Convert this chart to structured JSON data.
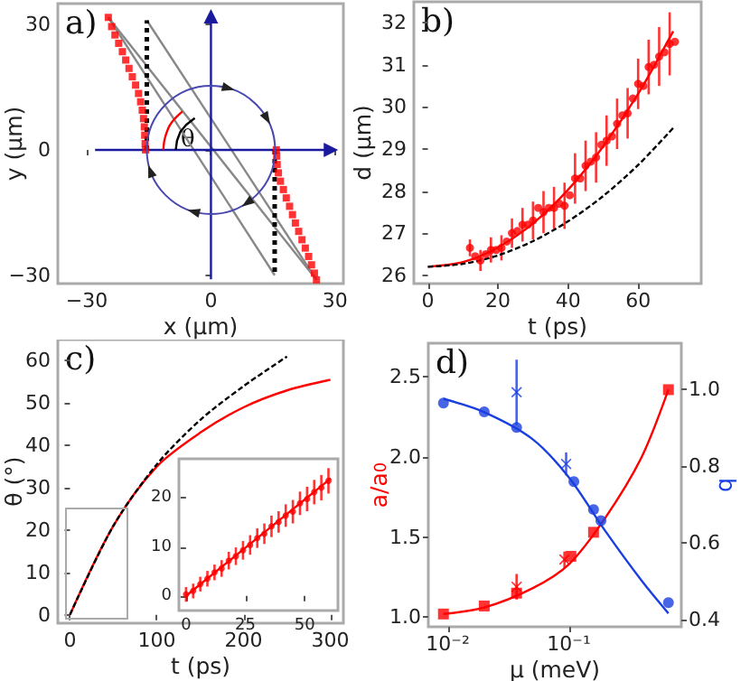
{
  "chart_data": [
    {
      "type": "line",
      "title": "a)",
      "xlabel": "x (μm)",
      "ylabel": "y (μm)",
      "xlim": [
        -37,
        32
      ],
      "ylim": [
        -32,
        35
      ],
      "xticks": [
        {
          "value": -30,
          "label": "−30"
        },
        0,
        30
      ],
      "yticks": [
        {
          "value": -30,
          "label": "−30"
        },
        0,
        30
      ],
      "grid": false,
      "annotations": [
        {
          "text": "θ",
          "x": -5.6,
          "y": 2.3
        }
      ],
      "series": [
        {
          "color": "#888888",
          "x": [
            -24.8,
            25.5
          ],
          "values": [
            31.7,
            -31.1
          ],
          "marker": "none"
        },
        {
          "color": "#888888",
          "x": [
            -24.8,
            15.4
          ],
          "values": [
            31.7,
            -30
          ],
          "marker": "none"
        },
        {
          "color": "#888888",
          "x": [
            -15.5,
            25.5
          ],
          "values": [
            31,
            -31.1
          ],
          "marker": "none"
        },
        {
          "color": "#1a1a9e",
          "x": [
            -28,
            29
          ],
          "values": [
            0,
            0
          ],
          "marker": "triangle"
        },
        {
          "color": "#1a1a9e",
          "x": [
            0,
            0
          ],
          "values": [
            -31,
            32
          ],
          "marker": "triangle"
        },
        {
          "color": "#ff0000",
          "x": [
            -11.5,
            -11.3,
            -10.8,
            -10,
            -8.8,
            -6.9
          ],
          "values": [
            0,
            2,
            3.9,
            5.8,
            7.4,
            9.2
          ],
          "marker": "none"
        },
        {
          "color": "#000000",
          "x": [
            -8.5,
            -8.2,
            -7.4,
            -6,
            -3.9
          ],
          "values": [
            0,
            2.2,
            4.3,
            6,
            7.6
          ],
          "marker": "none"
        },
        {
          "color": "#000000",
          "x": [
            -15.5,
            -15.5
          ],
          "values": [
            0,
            31
          ],
          "marker": "none",
          "line_style": "dotted"
        },
        {
          "color": "#000000",
          "x": [
            15.4,
            15.4
          ],
          "values": [
            0,
            -30
          ],
          "marker": "none",
          "line_style": "dotted"
        },
        {
          "type": "scatter",
          "color": "#ff0000",
          "marker": "square",
          "x": [
            -24.8,
            -24,
            -23.2,
            -22.3,
            -21.4,
            -20.6,
            -19.8,
            -19,
            -18.2,
            -17.5,
            -17,
            -16.6,
            -16.3,
            -16.1,
            -16,
            -15.9,
            -15.8,
            15.8,
            15.9,
            16,
            16.3,
            16.8,
            17.5,
            18.2,
            19,
            19.7,
            20.4,
            21.2,
            22,
            22.8,
            23.6,
            24.3,
            25,
            25.5
          ],
          "values": [
            31.7,
            29.5,
            27.5,
            25.5,
            23.5,
            21.5,
            19.5,
            17.5,
            15.5,
            13.5,
            11.5,
            9.5,
            7.5,
            5.5,
            3.5,
            1.5,
            0,
            0,
            -1.5,
            -3.5,
            -5.5,
            -7.5,
            -9.5,
            -11.5,
            -13.5,
            -15.5,
            -17.5,
            -19.5,
            -21.5,
            -23.5,
            -25.5,
            -27.5,
            -29.5,
            -31.1
          ]
        }
      ]
    },
    {
      "type": "line",
      "title": "b)",
      "xlabel": "t (ps)",
      "ylabel": "d (μm)",
      "xlim": [
        -4,
        78
      ],
      "ylim": [
        25.8,
        32.5
      ],
      "xticks": [
        0,
        20,
        40,
        60
      ],
      "yticks": [
        26,
        27,
        28,
        29,
        30,
        31,
        32
      ],
      "grid": false,
      "series": [
        {
          "color": "#000000",
          "x": [
            0,
            10,
            20,
            30,
            40,
            50,
            60,
            70
          ],
          "values": [
            26.2,
            26.27,
            26.47,
            26.81,
            27.28,
            27.88,
            28.62,
            29.5
          ],
          "marker": "none",
          "line_style": "dashed"
        },
        {
          "color": "#ff0000",
          "x": [
            0,
            10,
            20,
            30,
            40,
            50,
            60,
            70
          ],
          "values": [
            26.2,
            26.31,
            26.66,
            27.23,
            28.03,
            29.06,
            30.31,
            31.8
          ],
          "marker": "none"
        },
        {
          "type": "scatter",
          "color": "#ff0000",
          "marker": "circle",
          "x": [
            12,
            13.5,
            15,
            16.5,
            18,
            19.5,
            21,
            22.5,
            24,
            25.5,
            27,
            28.5,
            30,
            31.5,
            33,
            34.5,
            36,
            37.5,
            39,
            40.5,
            42,
            43.5,
            45,
            46.5,
            48,
            49.5,
            51,
            52.5,
            54,
            55.5,
            57,
            58.5,
            60,
            61.5,
            63,
            64.5,
            66,
            67.5,
            69,
            70.5
          ],
          "values": [
            26.65,
            26.45,
            26.35,
            26.5,
            26.6,
            26.6,
            26.65,
            26.8,
            27.0,
            27.05,
            27.2,
            27.2,
            27.3,
            27.6,
            27.5,
            27.6,
            27.6,
            27.7,
            27.65,
            27.9,
            28.3,
            28.3,
            28.6,
            28.7,
            28.8,
            29.1,
            29.2,
            29.3,
            29.6,
            29.8,
            29.85,
            30.2,
            30.55,
            30.5,
            30.95,
            31.0,
            31.2,
            31.3,
            31.5,
            31.55
          ],
          "errors": [
            0.2,
            null,
            0.25,
            null,
            0.3,
            null,
            0.3,
            null,
            0.35,
            null,
            0.4,
            null,
            0.45,
            null,
            0.5,
            null,
            0.5,
            null,
            0.55,
            null,
            0.6,
            null,
            0.6,
            null,
            0.6,
            null,
            0.6,
            null,
            0.6,
            null,
            0.6,
            null,
            0.6,
            null,
            0.65,
            null,
            0.7,
            null,
            0.75,
            null
          ]
        }
      ]
    },
    {
      "type": "line",
      "title": "c)",
      "xlabel": "t (ps)",
      "ylabel": "θ (°)",
      "xlim": [
        -14,
        315
      ],
      "ylim": [
        -2,
        65
      ],
      "xticks": [
        0,
        100,
        200,
        300
      ],
      "yticks": [
        0,
        10,
        20,
        30,
        40,
        50,
        60
      ],
      "grid": false,
      "series": [
        {
          "color": "#000000",
          "x": [
            0,
            50,
            100,
            150,
            200,
            250
          ],
          "values": [
            0,
            21,
            35.5,
            46,
            54,
            61
          ],
          "marker": "none",
          "line_style": "dashed"
        },
        {
          "color": "#ff0000",
          "x": [
            0,
            50,
            100,
            150,
            200,
            250,
            300
          ],
          "values": [
            0,
            21,
            35,
            43,
            49,
            53,
            55.5
          ],
          "marker": "none"
        }
      ]
    },
    {
      "type": "line",
      "xlim": [
        -3,
        64
      ],
      "ylim": [
        -3,
        28
      ],
      "xticks": [
        0,
        25,
        50
      ],
      "yticks": [
        0,
        10,
        20
      ],
      "grid": false,
      "series": [
        {
          "color": "#ff0000",
          "x": [
            0,
            61
          ],
          "values": [
            0,
            24
          ],
          "marker": "none"
        },
        {
          "type": "scatter",
          "color": "#ff0000",
          "marker": "circle",
          "x": [
            0,
            3,
            6,
            9,
            12,
            15,
            18,
            21,
            24,
            27,
            30,
            33,
            36,
            39,
            42,
            45,
            48,
            51,
            54,
            57,
            60
          ],
          "values": [
            0.3,
            1,
            2.4,
            3.5,
            4.8,
            5.6,
            7.2,
            8.1,
            9.3,
            10.4,
            11.8,
            12.7,
            14.2,
            15.1,
            16.4,
            17.2,
            18.9,
            19.8,
            21.2,
            22.1,
            23.5
          ],
          "errors": [
            1.5,
            1.5,
            1.5,
            1.6,
            1.6,
            1.7,
            1.8,
            1.8,
            1.9,
            2,
            2,
            2.1,
            2.2,
            2.2,
            2.3,
            2.4,
            2.4,
            2.5,
            2.5,
            2.6,
            2.6
          ]
        }
      ]
    },
    {
      "type": "line",
      "title": "d)",
      "xlabel": "μ (meV)",
      "ylabel": "a/a$_{0}$",
      "y2label": "b",
      "log": "x",
      "xlim": [
        0.0069,
        0.85
      ],
      "ylim": [
        0.94,
        2.71
      ],
      "y2lim": [
        0.38,
        1.12
      ],
      "xticks": [
        {
          "value": 0.01,
          "label": "10⁻²"
        },
        {
          "value": 0.1,
          "label": "10⁻¹"
        }
      ],
      "yticks": [
        {
          "value": 1,
          "label": "1.0"
        },
        1.5,
        {
          "value": 2,
          "label": "2.0"
        },
        2.5
      ],
      "y2ticks": [
        0.4,
        0.6,
        0.8,
        {
          "value": 1,
          "label": "1.0"
        }
      ],
      "grid": false,
      "series": [
        {
          "color": "#ff0000",
          "x": [
            0.0092,
            0.02,
            0.05,
            0.1,
            0.2,
            0.4,
            0.665
          ],
          "values": [
            1.02,
            1.06,
            1.18,
            1.33,
            1.62,
            2.0,
            2.42
          ],
          "marker": "none"
        },
        {
          "type": "scatter",
          "color": "#ff0000",
          "marker": "square",
          "x": [
            0.0092,
            0.02,
            0.037,
            0.104,
            0.16,
            0.665
          ],
          "values": [
            1.02,
            1.07,
            1.15,
            1.38,
            1.53,
            2.42
          ]
        },
        {
          "type": "scatter",
          "color": "#ff0000",
          "marker": "cross",
          "x": [
            0.037,
            0.092
          ],
          "values": [
            1.19,
            1.36
          ],
          "errors": [
            0.08,
            0.05
          ]
        },
        {
          "color": "#1a3fe0",
          "axis": "y2",
          "x": [
            0.0092,
            0.02,
            0.05,
            0.1,
            0.2,
            0.4,
            0.665
          ],
          "values": [
            0.975,
            0.94,
            0.87,
            0.77,
            0.63,
            0.5,
            0.415
          ],
          "marker": "none"
        },
        {
          "type": "scatter",
          "color": "#1a3fe0",
          "axis": "y2",
          "marker": "circle",
          "x": [
            0.0092,
            0.02,
            0.037,
            0.11,
            0.16,
            0.184,
            0.665
          ],
          "values": [
            0.964,
            0.941,
            0.9,
            0.759,
            0.686,
            0.657,
            0.443
          ]
        },
        {
          "type": "scatter",
          "color": "#1a3fe0",
          "axis": "y2",
          "marker": "cross",
          "x": [
            0.037,
            0.095
          ],
          "values": [
            0.992,
            0.805
          ],
          "errors": [
            0.085,
            0.03
          ]
        }
      ]
    }
  ]
}
